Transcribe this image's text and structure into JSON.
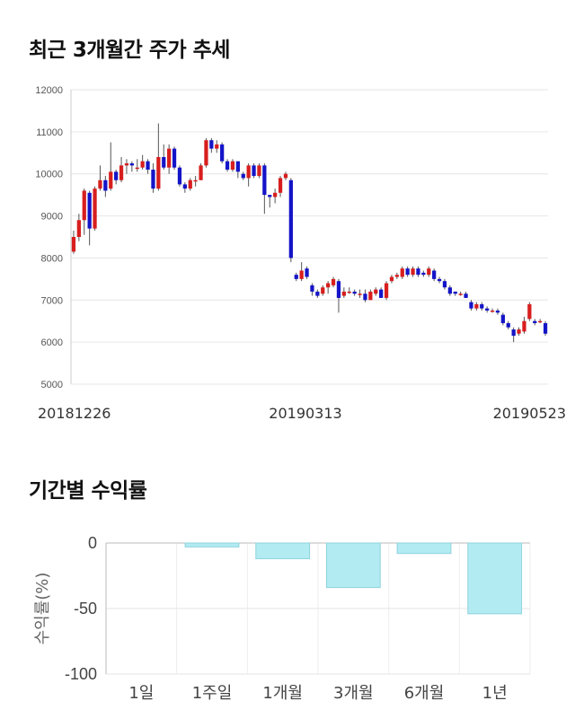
{
  "sections": {
    "price_title": "최근 3개월간 주가 추세",
    "returns_title": "기간별 수익률"
  },
  "colors": {
    "up": "#d81e1e",
    "down": "#1414c8",
    "wick": "#555555",
    "bar_fill": "#b2ebf2",
    "bar_stroke": "#8fd3de",
    "grid": "#e6e6e6"
  },
  "chart_data": [
    {
      "type": "candlestick",
      "title": "최근 3개월간 주가 추세",
      "ylim": [
        5000,
        12000
      ],
      "yticks": [
        "12000",
        "11000",
        "10000",
        "9000",
        "8000",
        "7000",
        "6000",
        "5000"
      ],
      "xlabels": [
        "20181226",
        "20190313",
        "20190523"
      ],
      "grid": true,
      "candles": [
        [
          8150,
          8500,
          8650,
          8100
        ],
        [
          8500,
          8900,
          9050,
          8400
        ],
        [
          8900,
          9600,
          9650,
          8550
        ],
        [
          9550,
          8700,
          9600,
          8300
        ],
        [
          8700,
          9650,
          9700,
          8650
        ],
        [
          9650,
          9850,
          10200,
          9600
        ],
        [
          9850,
          9600,
          9950,
          9450
        ],
        [
          9650,
          10050,
          10750,
          9600
        ],
        [
          10050,
          9850,
          10100,
          9750
        ],
        [
          9850,
          10200,
          10400,
          9800
        ],
        [
          10200,
          10250,
          10350,
          10000
        ],
        [
          10250,
          10200,
          10300,
          10050
        ],
        [
          10150,
          10150,
          10350,
          10050
        ],
        [
          10150,
          10300,
          10450,
          10100
        ],
        [
          10300,
          10100,
          10350,
          10000
        ],
        [
          10100,
          9650,
          10250,
          9550
        ],
        [
          9650,
          10400,
          11200,
          9600
        ],
        [
          10400,
          10150,
          10700,
          10100
        ],
        [
          10150,
          10600,
          10700,
          10000
        ],
        [
          10600,
          10150,
          10650,
          10100
        ],
        [
          10150,
          9750,
          10200,
          9700
        ],
        [
          9750,
          9650,
          9800,
          9550
        ],
        [
          9650,
          9850,
          9900,
          9600
        ],
        [
          9850,
          9850,
          9950,
          9700
        ],
        [
          9850,
          10200,
          10250,
          9850
        ],
        [
          10200,
          10800,
          10850,
          10150
        ],
        [
          10800,
          10600,
          10850,
          10500
        ],
        [
          10600,
          10700,
          10800,
          10500
        ],
        [
          10700,
          10300,
          10750,
          10250
        ],
        [
          10300,
          10100,
          10350,
          10050
        ],
        [
          10100,
          10300,
          10350,
          10050
        ],
        [
          10300,
          10050,
          10300,
          9900
        ],
        [
          10000,
          9900,
          10050,
          9850
        ],
        [
          9900,
          10200,
          10250,
          9700
        ],
        [
          10200,
          9950,
          10250,
          9900
        ],
        [
          9950,
          10200,
          10250,
          9900
        ],
        [
          10200,
          9500,
          10250,
          9050
        ],
        [
          9500,
          9450,
          9500,
          9200
        ],
        [
          9450,
          9550,
          9650,
          9300
        ],
        [
          9550,
          9900,
          9950,
          9450
        ],
        [
          9900,
          10000,
          10050,
          9850
        ],
        [
          9850,
          8000,
          9900,
          7900
        ],
        [
          7600,
          7500,
          7650,
          7450
        ],
        [
          7500,
          7700,
          7900,
          7450
        ],
        [
          7750,
          7550,
          7800,
          7500
        ],
        [
          7350,
          7200,
          7400,
          7100
        ],
        [
          7200,
          7100,
          7250,
          7050
        ],
        [
          7150,
          7300,
          7350,
          7100
        ],
        [
          7300,
          7400,
          7450,
          7150
        ],
        [
          7350,
          7500,
          7550,
          7300
        ],
        [
          7450,
          7050,
          7500,
          6700
        ],
        [
          7100,
          7200,
          7300,
          7050
        ],
        [
          7200,
          7200,
          7300,
          7150
        ],
        [
          7200,
          7150,
          7250,
          7100
        ],
        [
          7150,
          7150,
          7250,
          7050
        ],
        [
          7150,
          7000,
          7250,
          6950
        ],
        [
          7000,
          7200,
          7250,
          7000
        ],
        [
          7150,
          7250,
          7300,
          7100
        ],
        [
          7250,
          7050,
          7300,
          7050
        ],
        [
          7050,
          7400,
          7450,
          7000
        ],
        [
          7450,
          7550,
          7600,
          7400
        ],
        [
          7550,
          7600,
          7650,
          7500
        ],
        [
          7550,
          7750,
          7800,
          7500
        ],
        [
          7750,
          7600,
          7800,
          7550
        ],
        [
          7600,
          7750,
          7800,
          7550
        ],
        [
          7750,
          7600,
          7800,
          7550
        ],
        [
          7650,
          7600,
          7700,
          7550
        ],
        [
          7600,
          7750,
          7800,
          7550
        ],
        [
          7700,
          7500,
          7750,
          7450
        ],
        [
          7500,
          7450,
          7550,
          7400
        ],
        [
          7450,
          7300,
          7500,
          7250
        ],
        [
          7300,
          7150,
          7350,
          7100
        ],
        [
          7200,
          7150,
          7200,
          7100
        ],
        [
          7150,
          7150,
          7200,
          7100
        ],
        [
          7150,
          7050,
          7200,
          7050
        ],
        [
          6950,
          6800,
          7000,
          6750
        ],
        [
          6800,
          6900,
          6950,
          6750
        ],
        [
          6900,
          6800,
          6950,
          6750
        ],
        [
          6800,
          6750,
          6850,
          6700
        ],
        [
          6750,
          6750,
          6800,
          6700
        ],
        [
          6750,
          6700,
          6800,
          6650
        ],
        [
          6650,
          6450,
          6700,
          6400
        ],
        [
          6450,
          6350,
          6500,
          6300
        ],
        [
          6300,
          6150,
          6350,
          6000
        ],
        [
          6200,
          6300,
          6350,
          6150
        ],
        [
          6250,
          6500,
          6600,
          6200
        ],
        [
          6550,
          6900,
          6950,
          6500
        ],
        [
          6500,
          6450,
          6550,
          6400
        ],
        [
          6500,
          6500,
          6550,
          6450
        ],
        [
          6450,
          6200,
          6500,
          6150
        ]
      ]
    },
    {
      "type": "bar",
      "title": "기간별 수익률",
      "ylabel": "수익률(%)",
      "ylim": [
        -100,
        0
      ],
      "yticks": [
        "0",
        "-50",
        "-100"
      ],
      "categories": [
        "1일",
        "1주일",
        "1개월",
        "3개월",
        "6개월",
        "1년"
      ],
      "values": [
        0,
        -3,
        -12,
        -34,
        -8,
        -54
      ],
      "grid": true
    }
  ]
}
